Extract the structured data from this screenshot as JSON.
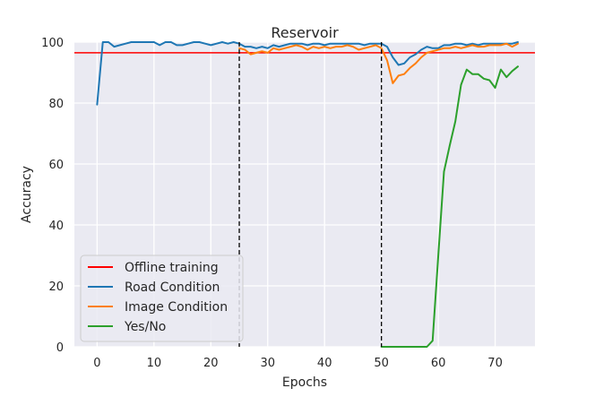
{
  "chart_data": {
    "type": "line",
    "title": "Reservoir",
    "xlabel": "Epochs",
    "ylabel": "Accuracy",
    "xlim": [
      -4,
      77
    ],
    "ylim": [
      0,
      100
    ],
    "xticks": [
      0,
      10,
      20,
      30,
      40,
      50,
      60,
      70
    ],
    "yticks": [
      0,
      20,
      40,
      60,
      80,
      100
    ],
    "grid": true,
    "legend_position": "lower-left",
    "reference_line": {
      "name": "Offline training",
      "y": 96.5,
      "color": "#ff0000"
    },
    "vlines": [
      25,
      50
    ],
    "series": [
      {
        "name": "Road Condition",
        "color": "#1f77b4",
        "x": [
          0,
          1,
          2,
          3,
          4,
          5,
          6,
          7,
          8,
          9,
          10,
          11,
          12,
          13,
          14,
          15,
          16,
          17,
          18,
          19,
          20,
          21,
          22,
          23,
          24,
          25,
          26,
          27,
          28,
          29,
          30,
          31,
          32,
          33,
          34,
          35,
          36,
          37,
          38,
          39,
          40,
          41,
          42,
          43,
          44,
          45,
          46,
          47,
          48,
          49,
          50,
          51,
          52,
          53,
          54,
          55,
          56,
          57,
          58,
          59,
          60,
          61,
          62,
          63,
          64,
          65,
          66,
          67,
          68,
          69,
          70,
          71,
          72,
          73,
          74
        ],
        "values": [
          79.5,
          100,
          100,
          98.5,
          99,
          99.5,
          100,
          100,
          100,
          100,
          100,
          99,
          100,
          100,
          99,
          99,
          99.5,
          100,
          100,
          99.5,
          99,
          99.5,
          100,
          99.5,
          100,
          99.5,
          98.5,
          98.5,
          98,
          98.5,
          98,
          99,
          98.5,
          99,
          99.5,
          99.5,
          99.5,
          99,
          99.5,
          99.5,
          99,
          99.5,
          99.5,
          99.5,
          99.5,
          99.5,
          99.5,
          99,
          99.5,
          99.5,
          99.5,
          98.5,
          95,
          92.5,
          93,
          95,
          96,
          97.5,
          98.5,
          98,
          98,
          99,
          99,
          99.5,
          99.5,
          99,
          99.5,
          99,
          99.5,
          99.5,
          99.5,
          99.5,
          99.5,
          99.5,
          100
        ]
      },
      {
        "name": "Image Condition",
        "color": "#ff7f0e",
        "x": [
          25,
          26,
          27,
          28,
          29,
          30,
          31,
          32,
          33,
          34,
          35,
          36,
          37,
          38,
          39,
          40,
          41,
          42,
          43,
          44,
          45,
          46,
          47,
          48,
          49,
          50,
          51,
          52,
          53,
          54,
          55,
          56,
          57,
          58,
          59,
          60,
          61,
          62,
          63,
          64,
          65,
          66,
          67,
          68,
          69,
          70,
          71,
          72,
          73,
          74
        ],
        "values": [
          98,
          97.5,
          96,
          96.5,
          97,
          96.5,
          98,
          97.5,
          98,
          98.5,
          99,
          98.5,
          97.5,
          98.5,
          98,
          98.5,
          98,
          98.5,
          98.5,
          99,
          98.5,
          97.5,
          98,
          98.5,
          99,
          98,
          94,
          86.5,
          89,
          89.5,
          91.5,
          93,
          95,
          96.5,
          97,
          97.5,
          98,
          98,
          98.5,
          98,
          98.5,
          99,
          98.5,
          98.5,
          99,
          99,
          99,
          99.5,
          98.5,
          99.5
        ]
      },
      {
        "name": "Yes/No",
        "color": "#2ca02c",
        "x": [
          50,
          51,
          52,
          53,
          54,
          55,
          56,
          57,
          58,
          59,
          60,
          61,
          62,
          63,
          64,
          65,
          66,
          67,
          68,
          69,
          70,
          71,
          72,
          73,
          74
        ],
        "values": [
          0,
          0,
          0,
          0,
          0,
          0,
          0,
          0,
          0,
          2,
          30,
          57.5,
          66,
          74,
          86,
          91,
          89.5,
          89.5,
          88,
          87.5,
          85,
          91,
          88.5,
          90.5,
          92
        ]
      }
    ]
  }
}
